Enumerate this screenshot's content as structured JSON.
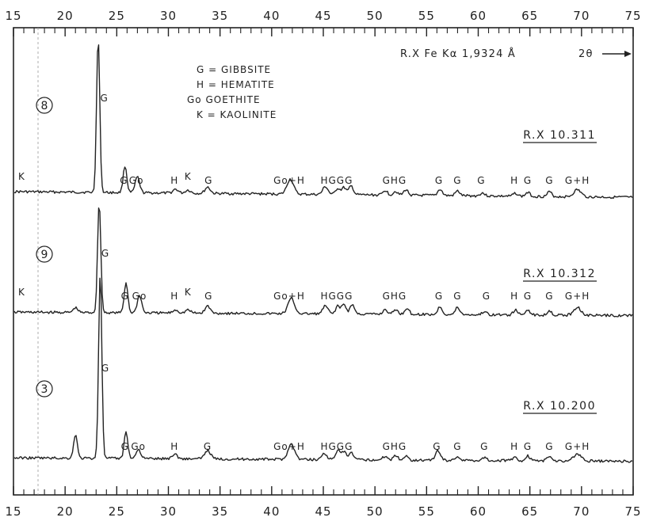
{
  "chart_data": {
    "type": "line",
    "x_axis": {
      "range": [
        15,
        75
      ],
      "ticks": [
        "15",
        "20",
        "25",
        "30",
        "35",
        "40",
        "45",
        "50",
        "55",
        "60",
        "65",
        "70",
        "75"
      ],
      "label": "2θ"
    },
    "radiation": "R.X Fe Kα 1,9324 Å",
    "legend": [
      "G = GIBBSITE",
      "H = HEMATITE",
      "Go  GOETHITE",
      "K = KAOLINITE"
    ],
    "series": [
      {
        "name": "8",
        "sample": "R.X 10.311",
        "peaks": [
          {
            "x": 23.2,
            "h": 195,
            "w": 0.22
          },
          {
            "x": 25.8,
            "h": 34,
            "w": 0.25
          },
          {
            "x": 27.0,
            "h": 20,
            "w": 0.3
          },
          {
            "x": 30.7,
            "h": 5,
            "w": 0.35
          },
          {
            "x": 31.9,
            "h": 4,
            "w": 0.35
          },
          {
            "x": 33.8,
            "h": 8,
            "w": 0.35
          },
          {
            "x": 41.8,
            "h": 19,
            "w": 0.45
          },
          {
            "x": 45.2,
            "h": 10,
            "w": 0.35
          },
          {
            "x": 46.4,
            "h": 8,
            "w": 0.3
          },
          {
            "x": 47.0,
            "h": 9,
            "w": 0.3
          },
          {
            "x": 47.7,
            "h": 11,
            "w": 0.3
          },
          {
            "x": 51.0,
            "h": 6,
            "w": 0.3
          },
          {
            "x": 52.0,
            "h": 5,
            "w": 0.3
          },
          {
            "x": 53.0,
            "h": 7,
            "w": 0.3
          },
          {
            "x": 56.3,
            "h": 8,
            "w": 0.3
          },
          {
            "x": 58.0,
            "h": 6,
            "w": 0.3
          },
          {
            "x": 60.4,
            "h": 4,
            "w": 0.3
          },
          {
            "x": 63.6,
            "h": 4,
            "w": 0.3
          },
          {
            "x": 64.8,
            "h": 5,
            "w": 0.3
          },
          {
            "x": 66.9,
            "h": 6,
            "w": 0.3
          },
          {
            "x": 69.6,
            "h": 9,
            "w": 0.5
          }
        ],
        "labels": [
          {
            "x": 23.8,
            "text": "G",
            "dy": -4
          },
          {
            "x": 25.7,
            "text": "G",
            "dy": 0
          },
          {
            "x": 26.9,
            "text": "Go",
            "dy": 0
          },
          {
            "x": 30.6,
            "text": "H",
            "dy": 0
          },
          {
            "x": 31.9,
            "text": "K",
            "dy": 0
          },
          {
            "x": 33.9,
            "text": "G",
            "dy": 0
          },
          {
            "x": 41.7,
            "text": "Go+H",
            "dy": 0
          },
          {
            "x": 46.3,
            "text": "HGGG",
            "dy": 0
          },
          {
            "x": 51.9,
            "text": "GHG",
            "dy": 0
          },
          {
            "x": 56.2,
            "text": "G",
            "dy": 0
          },
          {
            "x": 58.0,
            "text": "G",
            "dy": 0
          },
          {
            "x": 60.3,
            "text": "G",
            "dy": 0
          },
          {
            "x": 63.5,
            "text": "H",
            "dy": 0
          },
          {
            "x": 64.8,
            "text": "G",
            "dy": 0
          },
          {
            "x": 66.9,
            "text": "G",
            "dy": 0
          },
          {
            "x": 69.6,
            "text": "G+H",
            "dy": 0
          },
          {
            "x": 15.8,
            "text": "K",
            "dy": 0
          }
        ]
      },
      {
        "name": "9",
        "sample": "R.X 10.312",
        "peaks": [
          {
            "x": 21.0,
            "h": 6,
            "w": 0.3
          },
          {
            "x": 23.3,
            "h": 140,
            "w": 0.22
          },
          {
            "x": 25.9,
            "h": 38,
            "w": 0.25
          },
          {
            "x": 27.2,
            "h": 22,
            "w": 0.3
          },
          {
            "x": 30.7,
            "h": 4,
            "w": 0.35
          },
          {
            "x": 31.9,
            "h": 4,
            "w": 0.35
          },
          {
            "x": 33.8,
            "h": 9,
            "w": 0.35
          },
          {
            "x": 41.9,
            "h": 19,
            "w": 0.45
          },
          {
            "x": 45.2,
            "h": 10,
            "w": 0.35
          },
          {
            "x": 46.4,
            "h": 10,
            "w": 0.3
          },
          {
            "x": 47.0,
            "h": 12,
            "w": 0.3
          },
          {
            "x": 47.8,
            "h": 12,
            "w": 0.3
          },
          {
            "x": 51.0,
            "h": 6,
            "w": 0.3
          },
          {
            "x": 52.0,
            "h": 6,
            "w": 0.3
          },
          {
            "x": 53.1,
            "h": 8,
            "w": 0.3
          },
          {
            "x": 56.3,
            "h": 10,
            "w": 0.3
          },
          {
            "x": 58.0,
            "h": 9,
            "w": 0.3
          },
          {
            "x": 60.6,
            "h": 4,
            "w": 0.3
          },
          {
            "x": 63.6,
            "h": 6,
            "w": 0.3
          },
          {
            "x": 64.8,
            "h": 7,
            "w": 0.3
          },
          {
            "x": 66.9,
            "h": 6,
            "w": 0.3
          },
          {
            "x": 69.6,
            "h": 10,
            "w": 0.5
          }
        ],
        "labels": [
          {
            "x": 23.9,
            "text": "G",
            "dy": -4
          },
          {
            "x": 25.8,
            "text": "G",
            "dy": 0
          },
          {
            "x": 27.2,
            "text": "Go",
            "dy": 0
          },
          {
            "x": 30.6,
            "text": "H",
            "dy": 0
          },
          {
            "x": 31.9,
            "text": "K",
            "dy": 0
          },
          {
            "x": 33.9,
            "text": "G",
            "dy": 0
          },
          {
            "x": 41.7,
            "text": "Go+H",
            "dy": 0
          },
          {
            "x": 46.3,
            "text": "HGGG",
            "dy": 0
          },
          {
            "x": 51.9,
            "text": "GHG",
            "dy": 0
          },
          {
            "x": 56.2,
            "text": "G",
            "dy": 0
          },
          {
            "x": 58.0,
            "text": "G",
            "dy": 0
          },
          {
            "x": 60.8,
            "text": "G",
            "dy": 0
          },
          {
            "x": 63.5,
            "text": "H",
            "dy": 0
          },
          {
            "x": 64.8,
            "text": "G",
            "dy": 0
          },
          {
            "x": 66.9,
            "text": "G",
            "dy": 0
          },
          {
            "x": 69.6,
            "text": "G+H",
            "dy": 0
          },
          {
            "x": 15.8,
            "text": "K",
            "dy": 0
          }
        ]
      },
      {
        "name": "3",
        "sample": "R.X 10.200",
        "peaks": [
          {
            "x": 21.0,
            "h": 30,
            "w": 0.25
          },
          {
            "x": 23.4,
            "h": 235,
            "w": 0.22
          },
          {
            "x": 25.9,
            "h": 34,
            "w": 0.25
          },
          {
            "x": 27.1,
            "h": 12,
            "w": 0.3
          },
          {
            "x": 30.6,
            "h": 6,
            "w": 0.35
          },
          {
            "x": 33.8,
            "h": 11,
            "w": 0.4
          },
          {
            "x": 41.9,
            "h": 19,
            "w": 0.45
          },
          {
            "x": 45.1,
            "h": 8,
            "w": 0.35
          },
          {
            "x": 46.4,
            "h": 12,
            "w": 0.3
          },
          {
            "x": 47.0,
            "h": 10,
            "w": 0.3
          },
          {
            "x": 47.7,
            "h": 9,
            "w": 0.3
          },
          {
            "x": 51.0,
            "h": 5,
            "w": 0.3
          },
          {
            "x": 52.0,
            "h": 6,
            "w": 0.3
          },
          {
            "x": 53.0,
            "h": 5,
            "w": 0.3
          },
          {
            "x": 56.1,
            "h": 12,
            "w": 0.35
          },
          {
            "x": 58.0,
            "h": 5,
            "w": 0.3
          },
          {
            "x": 60.6,
            "h": 4,
            "w": 0.3
          },
          {
            "x": 63.5,
            "h": 4,
            "w": 0.3
          },
          {
            "x": 64.8,
            "h": 6,
            "w": 0.3
          },
          {
            "x": 66.9,
            "h": 6,
            "w": 0.3
          },
          {
            "x": 69.6,
            "h": 9,
            "w": 0.5
          }
        ],
        "labels": [
          {
            "x": 23.9,
            "text": "G",
            "dy": -4
          },
          {
            "x": 25.8,
            "text": "G",
            "dy": 0
          },
          {
            "x": 27.1,
            "text": "Go",
            "dy": 0
          },
          {
            "x": 30.6,
            "text": "H",
            "dy": 0
          },
          {
            "x": 33.8,
            "text": "G",
            "dy": 0
          },
          {
            "x": 41.7,
            "text": "Go+H",
            "dy": 0
          },
          {
            "x": 46.3,
            "text": "HGGG",
            "dy": 0
          },
          {
            "x": 51.9,
            "text": "GHG",
            "dy": 0
          },
          {
            "x": 56.0,
            "text": "G",
            "dy": 0
          },
          {
            "x": 58.0,
            "text": "G",
            "dy": 0
          },
          {
            "x": 60.6,
            "text": "G",
            "dy": 0
          },
          {
            "x": 63.5,
            "text": "H",
            "dy": 0
          },
          {
            "x": 64.8,
            "text": "G",
            "dy": 0
          },
          {
            "x": 66.9,
            "text": "G",
            "dy": 0
          },
          {
            "x": 69.6,
            "text": "G+H",
            "dy": 0
          }
        ]
      }
    ]
  }
}
